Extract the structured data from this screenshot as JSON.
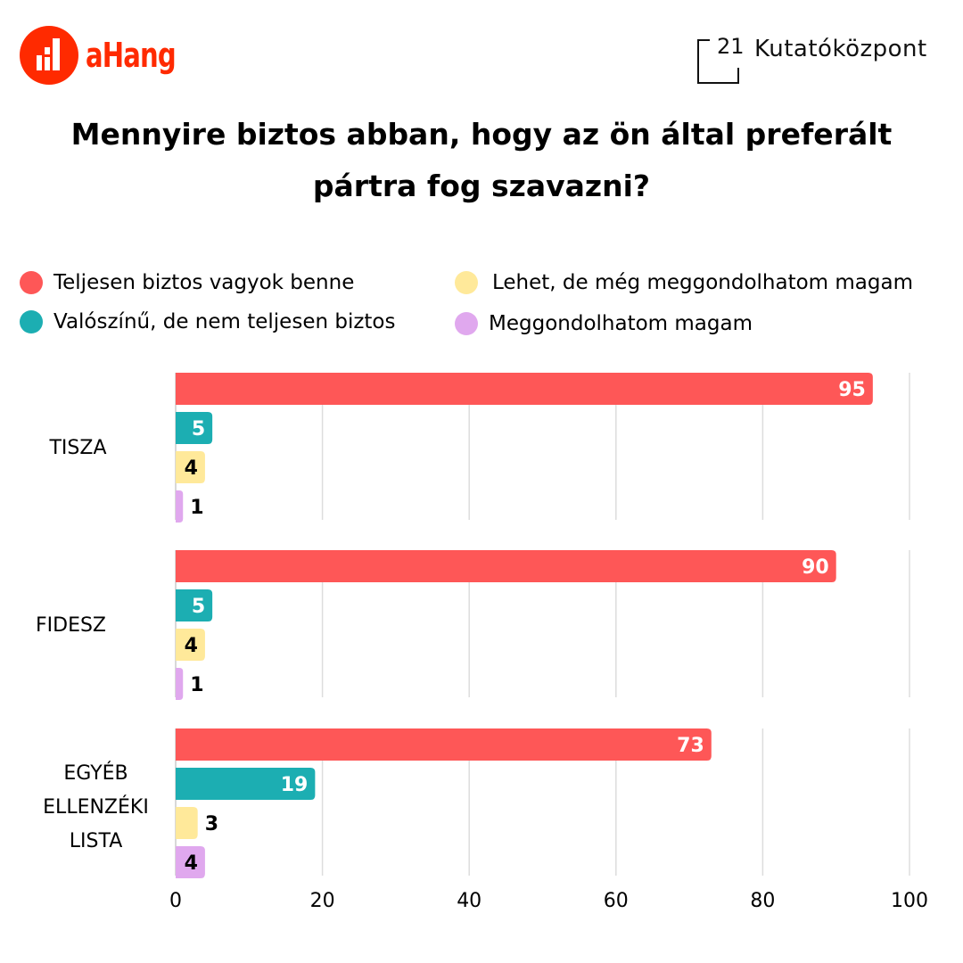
{
  "header": {
    "left_logo_text": "aHang",
    "right_logo_number": "21",
    "right_logo_text": "Kutatóközpont"
  },
  "colors": {
    "brand_orange": "#ff2a00",
    "series_red": "#fe5757",
    "series_teal": "#1caeb2",
    "series_yellow": "#ffe99a",
    "series_purple": "#e0a8ee"
  },
  "chart_data": {
    "type": "bar",
    "orientation": "horizontal",
    "title": "Mennyire biztos abban, hogy az ön által preferált pártra fog szavazni?",
    "title_lines": [
      "Mennyire biztos abban, hogy az ön által preferált",
      "pártra fog szavazni?"
    ],
    "categories": [
      "TISZA",
      "FIDESZ",
      "EGYÉB ELLENZÉKI LISTA"
    ],
    "category_lines": [
      [
        "TISZA"
      ],
      [
        "FIDESZ"
      ],
      [
        "EGYÉB",
        "ELLENZÉKI",
        "LISTA"
      ]
    ],
    "series": [
      {
        "name": "Teljesen biztos vagyok benne",
        "color": "#fe5757",
        "values": [
          95,
          90,
          73
        ]
      },
      {
        "name": "Valószínű, de nem teljesen biztos",
        "color": "#1caeb2",
        "values": [
          5,
          5,
          19
        ]
      },
      {
        "name": "Lehet, de még meggondolhatom magam",
        "color": "#ffe99a",
        "values": [
          4,
          4,
          3
        ]
      },
      {
        "name": "Meggondolhatom magam",
        "color": "#e0a8ee",
        "values": [
          1,
          1,
          4
        ]
      }
    ],
    "xlim": [
      0,
      100
    ],
    "xticks": [
      "0",
      "20",
      "40",
      "60",
      "80",
      "100"
    ],
    "xlabel": "",
    "ylabel": "",
    "grid": true,
    "legend_position": "top"
  }
}
